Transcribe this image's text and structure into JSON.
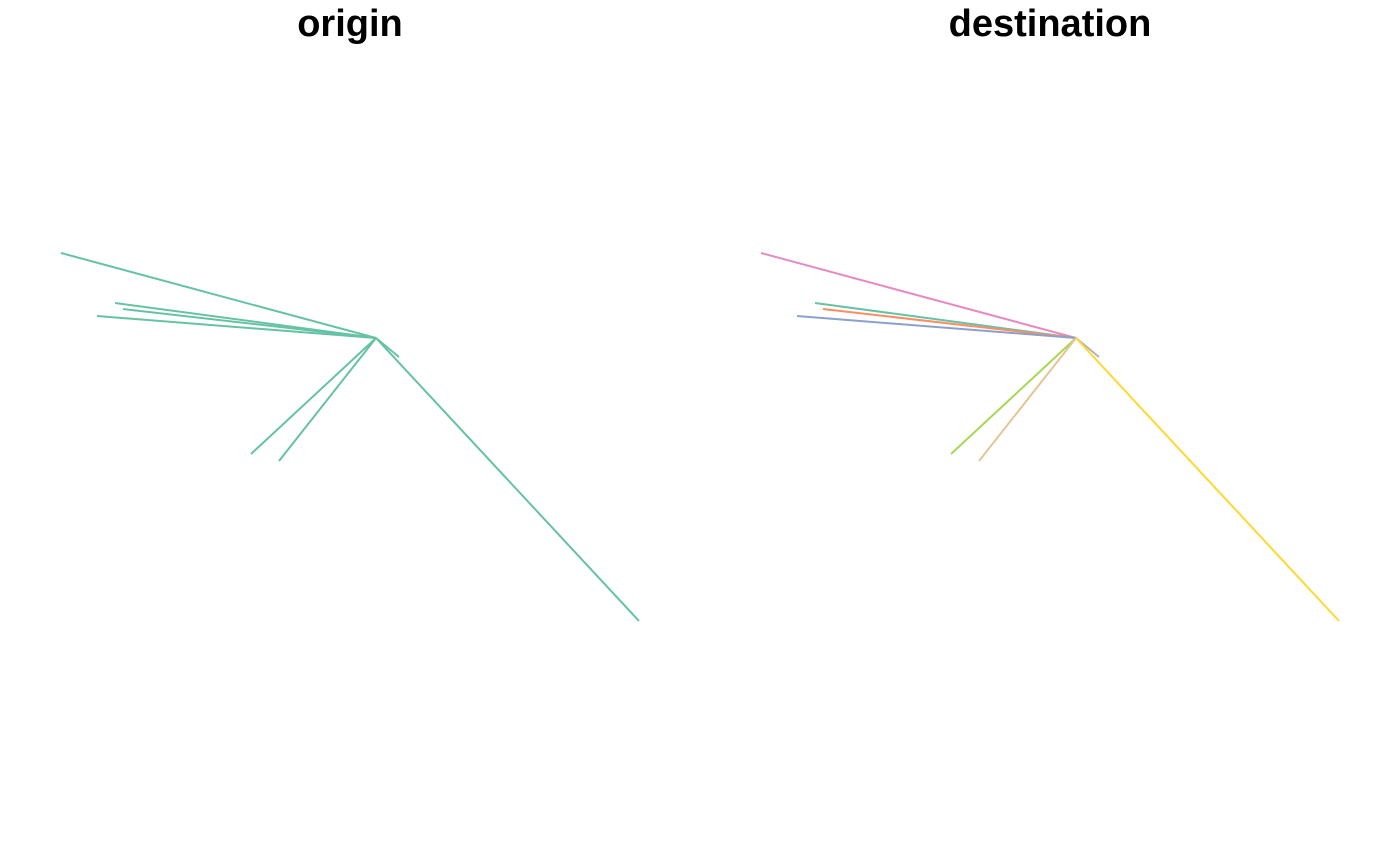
{
  "chart_data": [
    {
      "type": "line",
      "title": "origin",
      "segments": [
        {
          "from": [
            376,
            338
          ],
          "to": [
            61,
            253
          ],
          "color": "#66C2A5"
        },
        {
          "from": [
            376,
            338
          ],
          "to": [
            115,
            303
          ],
          "color": "#66C2A5"
        },
        {
          "from": [
            376,
            338
          ],
          "to": [
            123,
            309
          ],
          "color": "#66C2A5"
        },
        {
          "from": [
            376,
            338
          ],
          "to": [
            97,
            316
          ],
          "color": "#66C2A5"
        },
        {
          "from": [
            376,
            338
          ],
          "to": [
            399,
            357
          ],
          "color": "#66C2A5"
        },
        {
          "from": [
            376,
            338
          ],
          "to": [
            251,
            454
          ],
          "color": "#66C2A5"
        },
        {
          "from": [
            376,
            338
          ],
          "to": [
            279,
            461
          ],
          "color": "#66C2A5"
        },
        {
          "from": [
            376,
            338
          ],
          "to": [
            639,
            621
          ],
          "color": "#66C2A5"
        }
      ]
    },
    {
      "type": "line",
      "title": "destination",
      "segments": [
        {
          "from": [
            376,
            338
          ],
          "to": [
            61,
            253
          ],
          "color": "#E78AC3"
        },
        {
          "from": [
            376,
            338
          ],
          "to": [
            115,
            303
          ],
          "color": "#66C2A5"
        },
        {
          "from": [
            376,
            338
          ],
          "to": [
            123,
            309
          ],
          "color": "#FC8D62"
        },
        {
          "from": [
            376,
            338
          ],
          "to": [
            97,
            316
          ],
          "color": "#8DA0CB"
        },
        {
          "from": [
            376,
            338
          ],
          "to": [
            399,
            357
          ],
          "color": "#B3B3B3"
        },
        {
          "from": [
            376,
            338
          ],
          "to": [
            251,
            454
          ],
          "color": "#A6D854"
        },
        {
          "from": [
            376,
            338
          ],
          "to": [
            279,
            461
          ],
          "color": "#E5C494"
        },
        {
          "from": [
            376,
            338
          ],
          "to": [
            639,
            621
          ],
          "color": "#FFD92F"
        }
      ]
    }
  ]
}
